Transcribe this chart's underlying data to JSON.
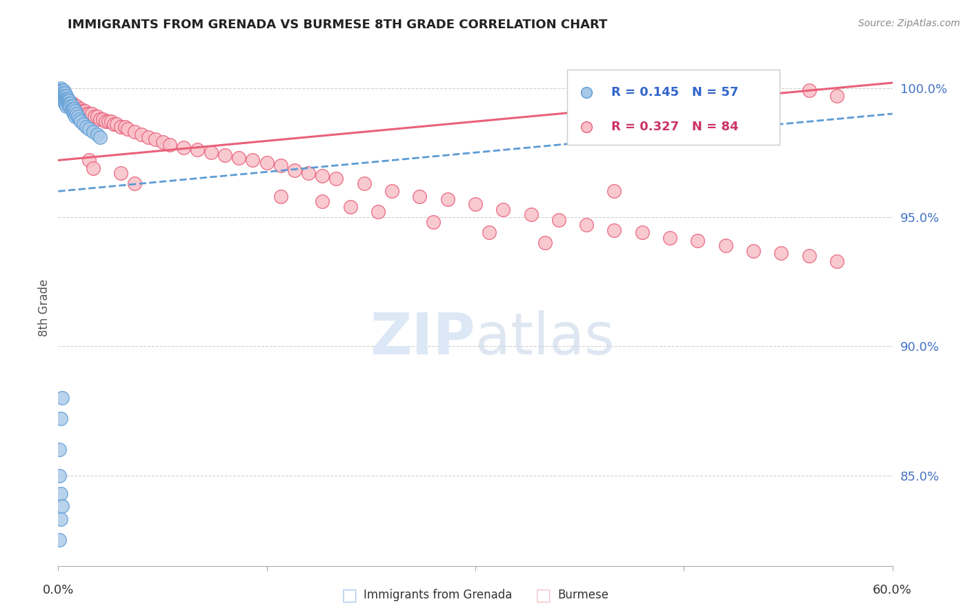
{
  "title": "IMMIGRANTS FROM GRENADA VS BURMESE 8TH GRADE CORRELATION CHART",
  "source": "Source: ZipAtlas.com",
  "ylabel": "8th Grade",
  "xmin": 0.0,
  "xmax": 0.6,
  "ymin": 0.815,
  "ymax": 1.015,
  "yticks": [
    0.85,
    0.9,
    0.95,
    1.0
  ],
  "ytick_labels": [
    "85.0%",
    "90.0%",
    "95.0%",
    "100.0%"
  ],
  "right_axis_color": "#4472c4",
  "legend_R_blue": "R = 0.145",
  "legend_N_blue": "N = 57",
  "legend_R_pink": "R = 0.327",
  "legend_N_pink": "N = 84",
  "scatter_blue_x": [
    0.001,
    0.001,
    0.001,
    0.002,
    0.002,
    0.002,
    0.002,
    0.002,
    0.003,
    0.003,
    0.003,
    0.003,
    0.004,
    0.004,
    0.004,
    0.004,
    0.005,
    0.005,
    0.005,
    0.005,
    0.006,
    0.006,
    0.006,
    0.006,
    0.007,
    0.007,
    0.007,
    0.008,
    0.008,
    0.008,
    0.009,
    0.009,
    0.01,
    0.01,
    0.01,
    0.011,
    0.011,
    0.012,
    0.012,
    0.013,
    0.014,
    0.015,
    0.016,
    0.018,
    0.02,
    0.022,
    0.025,
    0.028,
    0.03,
    0.003,
    0.002,
    0.001,
    0.001,
    0.002,
    0.003,
    0.002,
    0.001
  ],
  "scatter_blue_y": [
    0.999,
    0.998,
    0.997,
    1.0,
    0.999,
    0.998,
    0.997,
    0.996,
    0.999,
    0.998,
    0.997,
    0.996,
    0.999,
    0.998,
    0.997,
    0.995,
    0.998,
    0.997,
    0.996,
    0.994,
    0.997,
    0.996,
    0.995,
    0.993,
    0.996,
    0.995,
    0.994,
    0.995,
    0.994,
    0.993,
    0.994,
    0.993,
    0.993,
    0.992,
    0.991,
    0.992,
    0.99,
    0.991,
    0.989,
    0.99,
    0.989,
    0.988,
    0.987,
    0.986,
    0.985,
    0.984,
    0.983,
    0.982,
    0.981,
    0.88,
    0.872,
    0.86,
    0.85,
    0.843,
    0.838,
    0.833,
    0.825
  ],
  "scatter_pink_x": [
    0.002,
    0.003,
    0.004,
    0.005,
    0.006,
    0.007,
    0.008,
    0.008,
    0.009,
    0.01,
    0.011,
    0.012,
    0.013,
    0.014,
    0.015,
    0.016,
    0.017,
    0.018,
    0.019,
    0.02,
    0.022,
    0.024,
    0.026,
    0.028,
    0.03,
    0.032,
    0.034,
    0.036,
    0.038,
    0.04,
    0.042,
    0.045,
    0.048,
    0.05,
    0.055,
    0.06,
    0.065,
    0.07,
    0.075,
    0.08,
    0.09,
    0.1,
    0.11,
    0.12,
    0.13,
    0.14,
    0.15,
    0.16,
    0.17,
    0.18,
    0.19,
    0.2,
    0.22,
    0.24,
    0.26,
    0.28,
    0.3,
    0.32,
    0.34,
    0.36,
    0.38,
    0.4,
    0.42,
    0.44,
    0.46,
    0.48,
    0.5,
    0.52,
    0.54,
    0.56,
    0.022,
    0.025,
    0.16,
    0.19,
    0.21,
    0.23,
    0.27,
    0.31,
    0.35,
    0.045,
    0.055,
    0.4,
    0.54,
    0.56
  ],
  "scatter_pink_y": [
    0.997,
    0.997,
    0.996,
    0.996,
    0.996,
    0.995,
    0.995,
    0.994,
    0.994,
    0.994,
    0.993,
    0.993,
    0.993,
    0.992,
    0.992,
    0.992,
    0.991,
    0.991,
    0.991,
    0.99,
    0.99,
    0.99,
    0.989,
    0.989,
    0.988,
    0.988,
    0.987,
    0.987,
    0.987,
    0.986,
    0.986,
    0.985,
    0.985,
    0.984,
    0.983,
    0.982,
    0.981,
    0.98,
    0.979,
    0.978,
    0.977,
    0.976,
    0.975,
    0.974,
    0.973,
    0.972,
    0.971,
    0.97,
    0.968,
    0.967,
    0.966,
    0.965,
    0.963,
    0.96,
    0.958,
    0.957,
    0.955,
    0.953,
    0.951,
    0.949,
    0.947,
    0.945,
    0.944,
    0.942,
    0.941,
    0.939,
    0.937,
    0.936,
    0.935,
    0.933,
    0.972,
    0.969,
    0.958,
    0.956,
    0.954,
    0.952,
    0.948,
    0.944,
    0.94,
    0.967,
    0.963,
    0.96,
    0.999,
    0.997
  ],
  "trend_blue_x0": 0.0,
  "trend_blue_x1": 0.6,
  "trend_blue_y0": 0.96,
  "trend_blue_y1": 0.99,
  "trend_pink_x0": 0.0,
  "trend_pink_x1": 0.6,
  "trend_pink_y0": 0.972,
  "trend_pink_y1": 1.002,
  "blue_color": "#a8c8e8",
  "blue_edge_color": "#5b9bd5",
  "pink_color": "#f9c0c8",
  "pink_edge_color": "#e8607a",
  "trend_blue_color": "#5b9bd5",
  "trend_pink_color": "#e8607a",
  "bg_color": "#ffffff",
  "grid_color": "#d0d0d0",
  "watermark_color": "#dce8f5"
}
